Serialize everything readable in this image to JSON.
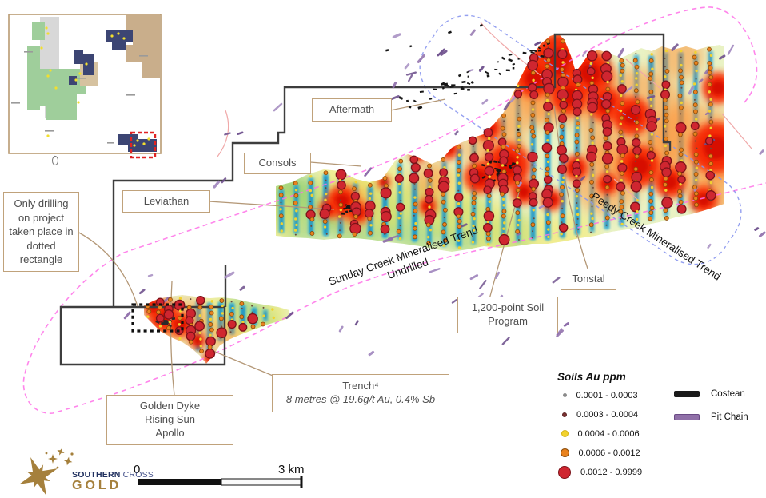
{
  "callouts": {
    "aftermath": "Aftermath",
    "consols": "Consols",
    "leviathan": "Leviathan",
    "tonstal": "Tonstal",
    "soil_program": [
      "1,200-point Soil",
      "Program"
    ],
    "golden_dyke": [
      "Golden Dyke",
      "Rising Sun",
      "Apollo"
    ],
    "trench_title": "Trench⁴",
    "trench_detail": "8 metres @ 19.6g/t Au, 0.4% Sb",
    "drilling_note": "Only drilling on project taken place in dotted rectangle"
  },
  "trends": {
    "sunday_creek": "Sunday Creek Mineralised Trend",
    "sunday_creek_sub": "Undrilled",
    "reedy_creek": "Reedy Creek Mineralised Trend"
  },
  "legend": {
    "title": "Soils Au ppm",
    "items": [
      {
        "range": "0.0001 - 0.0003",
        "color": "#8a8a8a",
        "size": 3,
        "border": "#8a8a8a"
      },
      {
        "range": "0.0003 - 0.0004",
        "color": "#7a3030",
        "size": 4,
        "border": "#5c2424"
      },
      {
        "range": "0.0004 - 0.0006",
        "color": "#f2d22e",
        "size": 7,
        "border": "#d4b312"
      },
      {
        "range": "0.0006 - 0.0012",
        "color": "#e8821e",
        "size": 9,
        "border": "#8a4a08"
      },
      {
        "range": "0.0012 - 0.9999",
        "color": "#cf2630",
        "size": 14,
        "border": "#7c1218"
      }
    ],
    "line_items": [
      {
        "label": "Costean",
        "color": "#1a1a1a",
        "border": "#1a1a1a"
      },
      {
        "label": "Pit Chain",
        "color": "#9070a8",
        "border": "#6a4a85"
      }
    ]
  },
  "scale_bar": {
    "start_label": "0",
    "end_label": "3 km"
  },
  "logo": {
    "name_bold": "SOUTHERN",
    "name_rest": " CROSS",
    "word": "GOLD"
  },
  "colors": {
    "callout_border": "#c0a27b",
    "pink_trend_outline": "#ff70e8",
    "blue_trend_outline": "#8896ee",
    "pit_chain": "#9070a8",
    "costean": "#1a1a1a",
    "tenement_boundary": "#3d3d3d",
    "dot_red": "#cf2630",
    "dot_orange": "#e8821e",
    "dot_yellow": "#f2d22e",
    "inset_red_box": "#e02222",
    "logo_navy": "#20305f",
    "logo_gold": "#a5803c"
  }
}
